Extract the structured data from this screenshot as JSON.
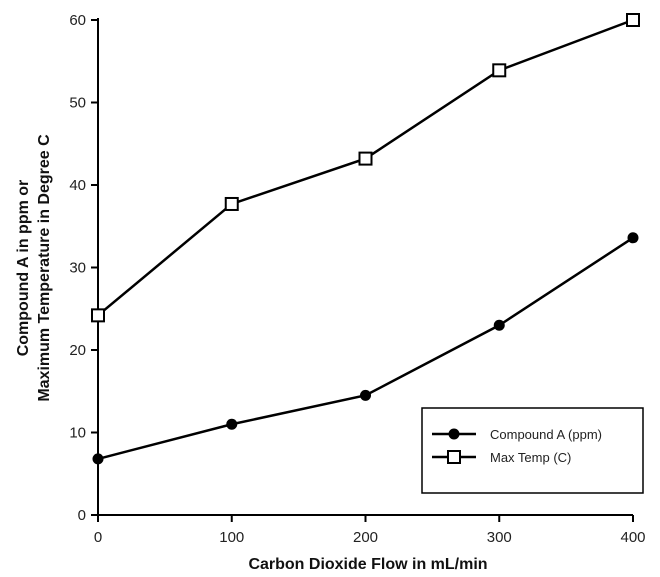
{
  "chart_data": {
    "type": "line",
    "title": "",
    "xlabel": "Carbon Dioxide Flow in mL/min",
    "ylabel_lines": [
      "Compound A in ppm or",
      "Maximum Temperature in Degree C"
    ],
    "xlim": [
      0,
      400
    ],
    "ylim": [
      0,
      60
    ],
    "x_ticks": [
      "0",
      "100",
      "200",
      "300",
      "400"
    ],
    "y_ticks": [
      "0",
      "10",
      "20",
      "30",
      "40",
      "50",
      "60"
    ],
    "grid": false,
    "legend_position": "bottom-right",
    "x": [
      0,
      100,
      200,
      300,
      400
    ],
    "series": [
      {
        "name": "Compound A (ppm)",
        "marker": "filled-circle",
        "color": "#000000",
        "values": [
          6.8,
          11.0,
          14.5,
          23.0,
          33.6
        ]
      },
      {
        "name": "Max Temp (C)",
        "marker": "open-square",
        "color": "#000000",
        "values": [
          24.2,
          37.7,
          43.2,
          53.9,
          60.0
        ]
      }
    ]
  }
}
